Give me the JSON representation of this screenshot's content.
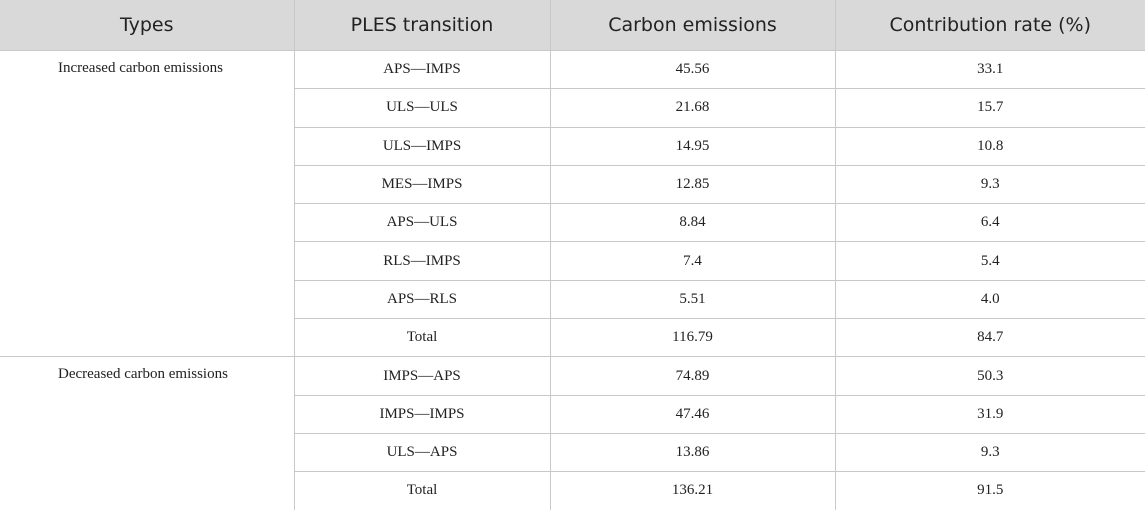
{
  "table": {
    "header": [
      "Types",
      "PLES transition",
      "Carbon emissions",
      "Contribution rate (%)"
    ],
    "groups": [
      {
        "type": "Increased carbon emissions",
        "rows": [
          [
            "APS—IMPS",
            "45.56",
            "33.1"
          ],
          [
            "ULS—ULS",
            "21.68",
            "15.7"
          ],
          [
            "ULS—IMPS",
            "14.95",
            "10.8"
          ],
          [
            "MES—IMPS",
            "12.85",
            "9.3"
          ],
          [
            "APS—ULS",
            "8.84",
            "6.4"
          ],
          [
            "RLS—IMPS",
            "7.4",
            "5.4"
          ],
          [
            "APS—RLS",
            "5.51",
            "4.0"
          ],
          [
            "Total",
            "116.79",
            "84.7"
          ]
        ]
      },
      {
        "type": "Decreased carbon emissions",
        "rows": [
          [
            "IMPS—APS",
            "74.89",
            "50.3"
          ],
          [
            "IMPS—IMPS",
            "47.46",
            "31.9"
          ],
          [
            "ULS—APS",
            "13.86",
            "9.3"
          ],
          [
            "Total",
            "136.21",
            "91.5"
          ]
        ]
      }
    ]
  }
}
